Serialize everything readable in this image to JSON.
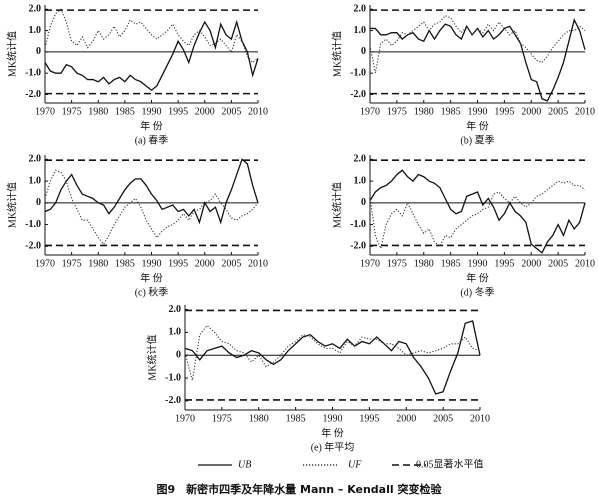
{
  "chart_data": [
    {
      "type": "line",
      "subtitle": "(a) 春季",
      "x_label": "年 份",
      "y_label": "MK统计值",
      "x": [
        1970,
        1971,
        1972,
        1973,
        1974,
        1975,
        1976,
        1977,
        1978,
        1979,
        1980,
        1981,
        1982,
        1983,
        1984,
        1985,
        1986,
        1987,
        1988,
        1989,
        1990,
        1991,
        1992,
        1993,
        1994,
        1995,
        1996,
        1997,
        1998,
        1999,
        2000,
        2001,
        2002,
        2003,
        2004,
        2005,
        2006,
        2007,
        2008,
        2009,
        2010
      ],
      "xlim": [
        1970,
        2010
      ],
      "xticks": [
        1970,
        1975,
        1980,
        1985,
        1990,
        1995,
        2000,
        2005,
        2010
      ],
      "ylim": [
        -2.4,
        2.2
      ],
      "yticks": [
        {
          "value": 2,
          "label": "2.0"
        },
        {
          "value": 1,
          "label": "1.0"
        },
        0,
        {
          "value": -1,
          "label": "-1.0"
        },
        {
          "value": -2,
          "label": "-2.0"
        }
      ],
      "hlines": [
        1.96,
        -1.96
      ],
      "series": [
        {
          "style": "solid",
          "color": "#111111",
          "values": [
            -0.5,
            -0.9,
            -1.0,
            -1.0,
            -0.6,
            -0.7,
            -1.0,
            -1.1,
            -1.3,
            -1.3,
            -1.4,
            -1.2,
            -1.5,
            -1.3,
            -1.2,
            -1.4,
            -1.1,
            -1.3,
            -1.4,
            -1.6,
            -1.8,
            -1.6,
            -1.1,
            -0.6,
            -0.1,
            0.5,
            0.1,
            -0.5,
            0.3,
            0.9,
            1.4,
            1.0,
            0.2,
            1.3,
            0.8,
            0.6,
            1.4,
            0.5,
            0.0,
            -1.1,
            -0.3
          ]
        },
        {
          "style": "dotted",
          "color": "#333333",
          "values": [
            0.2,
            1.2,
            1.8,
            2.0,
            1.4,
            0.5,
            0.3,
            0.7,
            0.2,
            0.5,
            1.0,
            0.6,
            0.8,
            1.2,
            0.7,
            1.0,
            1.5,
            1.3,
            1.4,
            1.1,
            0.8,
            0.6,
            0.8,
            1.0,
            1.3,
            0.8,
            0.5,
            0.3,
            0.8,
            1.0,
            0.7,
            0.3,
            0.4,
            0.6,
            0.3,
            0.0,
            0.8,
            0.5,
            -0.2,
            -0.5,
            -0.3
          ]
        }
      ]
    },
    {
      "type": "line",
      "subtitle": "(b) 夏季",
      "x_label": "年 份",
      "y_label": "MK统计值",
      "x": [
        1970,
        1971,
        1972,
        1973,
        1974,
        1975,
        1976,
        1977,
        1978,
        1979,
        1980,
        1981,
        1982,
        1983,
        1984,
        1985,
        1986,
        1987,
        1988,
        1989,
        1990,
        1991,
        1992,
        1993,
        1994,
        1995,
        1996,
        1997,
        1998,
        1999,
        2000,
        2001,
        2002,
        2003,
        2004,
        2005,
        2006,
        2007,
        2008,
        2009,
        2010
      ],
      "xlim": [
        1970,
        2010
      ],
      "xticks": [
        1970,
        1975,
        1980,
        1985,
        1990,
        1995,
        2000,
        2005,
        2010
      ],
      "ylim": [
        -2.4,
        2.2
      ],
      "yticks": [
        {
          "value": 2,
          "label": "2.0"
        },
        {
          "value": 1,
          "label": "1.0"
        },
        0,
        {
          "value": -1,
          "label": "-1.0"
        },
        {
          "value": -2,
          "label": "-2.0"
        }
      ],
      "hlines": [
        1.96,
        -1.96
      ],
      "series": [
        {
          "style": "solid",
          "color": "#111111",
          "values": [
            1.1,
            1.1,
            0.8,
            0.8,
            0.9,
            0.9,
            0.6,
            0.8,
            0.9,
            0.6,
            0.5,
            1.0,
            0.6,
            1.0,
            1.3,
            1.2,
            0.8,
            0.6,
            1.2,
            0.8,
            1.1,
            0.7,
            1.0,
            0.6,
            0.8,
            1.1,
            1.2,
            0.8,
            0.4,
            -0.5,
            -1.3,
            -1.4,
            -2.2,
            -2.3,
            -1.8,
            -1.2,
            -0.5,
            0.5,
            1.5,
            1.0,
            0.1
          ]
        },
        {
          "style": "dotted",
          "color": "#333333",
          "values": [
            0.3,
            -1.0,
            0.4,
            0.6,
            0.3,
            0.5,
            0.9,
            0.8,
            1.0,
            1.2,
            1.4,
            1.0,
            1.3,
            1.4,
            1.7,
            1.6,
            1.2,
            0.9,
            1.2,
            0.8,
            1.1,
            0.9,
            1.3,
            1.0,
            1.4,
            1.1,
            0.8,
            1.0,
            0.4,
            0.2,
            -0.1,
            -0.4,
            -0.5,
            -0.2,
            0.2,
            0.5,
            0.8,
            1.0,
            1.0,
            1.2,
            1.0
          ]
        }
      ]
    },
    {
      "type": "line",
      "subtitle": "(c) 秋季",
      "x_label": "年 份",
      "y_label": "MK统计值",
      "x": [
        1970,
        1971,
        1972,
        1973,
        1974,
        1975,
        1976,
        1977,
        1978,
        1979,
        1980,
        1981,
        1982,
        1983,
        1984,
        1985,
        1986,
        1987,
        1988,
        1989,
        1990,
        1991,
        1992,
        1993,
        1994,
        1995,
        1996,
        1997,
        1998,
        1999,
        2000,
        2001,
        2002,
        2003,
        2004,
        2005,
        2006,
        2007,
        2008,
        2009,
        2010
      ],
      "xlim": [
        1970,
        2010
      ],
      "xticks": [
        1970,
        1975,
        1980,
        1985,
        1990,
        1995,
        2000,
        2005,
        2010
      ],
      "ylim": [
        -2.4,
        2.2
      ],
      "yticks": [
        {
          "value": 2,
          "label": "2.0"
        },
        {
          "value": 1,
          "label": "1.0"
        },
        0,
        {
          "value": -1,
          "label": "-1.0"
        },
        {
          "value": -2,
          "label": "-2.0"
        }
      ],
      "hlines": [
        1.96,
        -1.96
      ],
      "series": [
        {
          "style": "solid",
          "color": "#111111",
          "values": [
            -0.4,
            -0.3,
            0.0,
            0.6,
            1.0,
            1.3,
            0.8,
            0.4,
            0.3,
            0.2,
            0.0,
            -0.1,
            -0.5,
            -0.2,
            0.2,
            0.6,
            0.9,
            1.1,
            1.1,
            0.8,
            0.4,
            0.1,
            -0.3,
            -0.2,
            -0.1,
            -0.4,
            -0.3,
            -0.6,
            -0.3,
            -0.9,
            0.0,
            -0.4,
            -0.2,
            -0.9,
            0.0,
            0.6,
            1.3,
            2.0,
            1.8,
            0.8,
            0.0
          ]
        },
        {
          "style": "dotted",
          "color": "#333333",
          "values": [
            0.2,
            1.0,
            1.5,
            1.4,
            1.0,
            0.2,
            -0.3,
            -0.8,
            -0.8,
            -1.2,
            -1.6,
            -1.9,
            -1.5,
            -1.0,
            -0.6,
            -0.2,
            0.0,
            0.2,
            -0.2,
            -0.8,
            -1.2,
            -1.6,
            -1.3,
            -1.1,
            -1.0,
            -0.8,
            -0.5,
            -0.8,
            -0.4,
            -0.3,
            0.0,
            0.1,
            0.4,
            0.0,
            -0.3,
            -0.7,
            -0.8,
            -0.6,
            -0.5,
            -0.3,
            0.0
          ]
        }
      ]
    },
    {
      "type": "line",
      "subtitle": "(d) 冬季",
      "x_label": "年 份",
      "y_label": "MK统计值",
      "x": [
        1970,
        1971,
        1972,
        1973,
        1974,
        1975,
        1976,
        1977,
        1978,
        1979,
        1980,
        1981,
        1982,
        1983,
        1984,
        1985,
        1986,
        1987,
        1988,
        1989,
        1990,
        1991,
        1992,
        1993,
        1994,
        1995,
        1996,
        1997,
        1998,
        1999,
        2000,
        2001,
        2002,
        2003,
        2004,
        2005,
        2006,
        2007,
        2008,
        2009,
        2010
      ],
      "xlim": [
        1970,
        2010
      ],
      "xticks": [
        1970,
        1975,
        1980,
        1985,
        1990,
        1995,
        2000,
        2005,
        2010
      ],
      "ylim": [
        -2.4,
        2.2
      ],
      "yticks": [
        {
          "value": 2,
          "label": "2.0"
        },
        {
          "value": 1,
          "label": "1.0"
        },
        0,
        {
          "value": -1,
          "label": "-1.0"
        },
        {
          "value": -2,
          "label": "-2.0"
        }
      ],
      "hlines": [
        1.96,
        -1.96
      ],
      "series": [
        {
          "style": "solid",
          "color": "#111111",
          "values": [
            0.1,
            0.5,
            0.7,
            0.8,
            1.0,
            1.3,
            1.5,
            1.2,
            1.0,
            1.3,
            1.2,
            1.0,
            0.9,
            0.7,
            0.2,
            -0.3,
            -0.5,
            -0.4,
            0.3,
            0.4,
            0.5,
            -0.1,
            0.2,
            -0.2,
            -0.8,
            -0.5,
            0.0,
            -0.4,
            -0.6,
            -0.9,
            -1.9,
            -2.1,
            -2.3,
            -1.8,
            -1.5,
            -1.0,
            -1.5,
            -0.8,
            -1.2,
            -0.9,
            0.0
          ]
        },
        {
          "style": "dotted",
          "color": "#333333",
          "values": [
            0.3,
            -1.5,
            -2.1,
            -1.0,
            -0.5,
            -0.3,
            -0.6,
            0.0,
            -0.5,
            -1.0,
            -1.4,
            -1.2,
            -1.8,
            -2.0,
            -1.5,
            -1.6,
            -1.2,
            -1.0,
            -0.8,
            -0.6,
            -0.5,
            -0.3,
            -0.2,
            0.4,
            0.5,
            0.2,
            0.0,
            0.3,
            0.0,
            -0.2,
            0.0,
            0.3,
            0.4,
            0.6,
            0.8,
            1.0,
            0.9,
            1.0,
            0.8,
            0.8,
            0.6
          ]
        }
      ]
    },
    {
      "type": "line",
      "subtitle": "(e) 年平均",
      "x_label": "年 份",
      "y_label": "MK统计值",
      "x": [
        1970,
        1971,
        1972,
        1973,
        1974,
        1975,
        1976,
        1977,
        1978,
        1979,
        1980,
        1981,
        1982,
        1983,
        1984,
        1985,
        1986,
        1987,
        1988,
        1989,
        1990,
        1991,
        1992,
        1993,
        1994,
        1995,
        1996,
        1997,
        1998,
        1999,
        2000,
        2001,
        2002,
        2003,
        2004,
        2005,
        2006,
        2007,
        2008,
        2009,
        2010
      ],
      "xlim": [
        1970,
        2010
      ],
      "xticks": [
        1970,
        1975,
        1980,
        1985,
        1990,
        1995,
        2000,
        2005,
        2010
      ],
      "ylim": [
        -2.4,
        2.2
      ],
      "yticks": [
        {
          "value": 2,
          "label": "2.0"
        },
        {
          "value": 1,
          "label": "1.0"
        },
        0,
        {
          "value": -1,
          "label": "-1.0"
        },
        {
          "value": -2,
          "label": "-2.0"
        }
      ],
      "hlines": [
        1.96,
        -1.96
      ],
      "series": [
        {
          "style": "solid",
          "color": "#111111",
          "values": [
            0.3,
            0.2,
            -0.2,
            0.2,
            0.3,
            0.4,
            0.1,
            -0.1,
            0.0,
            0.2,
            0.1,
            -0.2,
            -0.4,
            -0.2,
            0.2,
            0.5,
            0.8,
            0.9,
            0.6,
            0.4,
            0.5,
            0.3,
            0.7,
            0.4,
            0.6,
            0.5,
            0.8,
            0.5,
            0.2,
            0.6,
            0.5,
            -0.1,
            -0.5,
            -1.0,
            -1.7,
            -1.6,
            -0.7,
            0.1,
            1.4,
            1.5,
            0.0
          ]
        },
        {
          "style": "dotted",
          "color": "#333333",
          "values": [
            0.1,
            -1.1,
            0.9,
            1.3,
            1.0,
            0.6,
            0.5,
            0.2,
            0.1,
            -0.3,
            0.0,
            -0.5,
            -0.3,
            0.0,
            0.4,
            0.6,
            0.9,
            0.8,
            0.5,
            0.3,
            0.3,
            0.1,
            0.6,
            0.4,
            0.8,
            0.7,
            0.7,
            0.5,
            0.5,
            0.3,
            0.0,
            0.1,
            0.2,
            0.1,
            0.2,
            0.3,
            0.5,
            0.5,
            0.8,
            0.3,
            0.2
          ]
        }
      ]
    }
  ],
  "legend": [
    {
      "name": "UB",
      "style": "solid"
    },
    {
      "name": "UF",
      "style": "dotted"
    },
    {
      "name": "0.05显著水平值",
      "style": "dashed"
    }
  ],
  "caption": "图9　新密市四季及年降水量 Mann – Kendall 突变检验"
}
